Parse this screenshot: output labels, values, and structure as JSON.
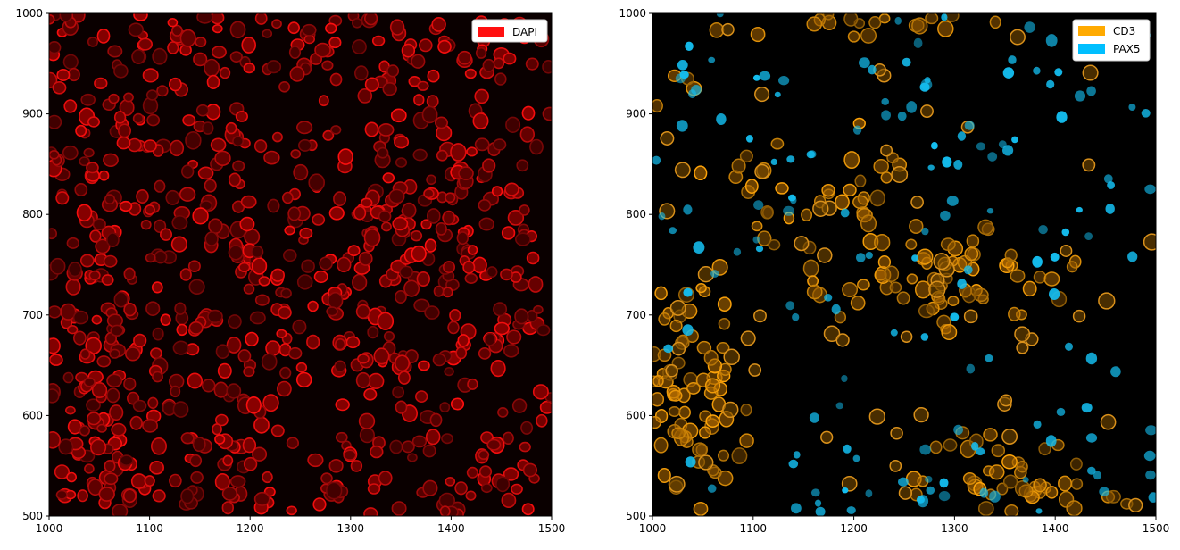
{
  "chart_data": [
    {
      "type": "image",
      "xlim": [
        1000,
        1500
      ],
      "ylim": [
        500,
        1000
      ],
      "x_ticks": [
        "1000",
        "1100",
        "1200",
        "1300",
        "1400",
        "1500"
      ],
      "y_ticks": [
        "500",
        "600",
        "700",
        "800",
        "900",
        "1000"
      ],
      "legend": [
        {
          "name": "DAPI",
          "color": "#ff1010"
        }
      ],
      "legend_position": "top-right",
      "background_color": "#050000",
      "cell_color": "#e00000"
    },
    {
      "type": "image",
      "xlim": [
        1000,
        1500
      ],
      "ylim": [
        500,
        1000
      ],
      "x_ticks": [
        "1000",
        "1100",
        "1200",
        "1300",
        "1400",
        "1500"
      ],
      "y_ticks": [
        "500",
        "600",
        "700",
        "800",
        "900",
        "1000"
      ],
      "legend": [
        {
          "name": "CD3",
          "color": "#ffaa00"
        },
        {
          "name": "PAX5",
          "color": "#00bfff"
        }
      ],
      "legend_position": "top-right",
      "background_color": "#000000",
      "cd3_color": "#e89a10",
      "pax5_color": "#14c4f0"
    }
  ]
}
